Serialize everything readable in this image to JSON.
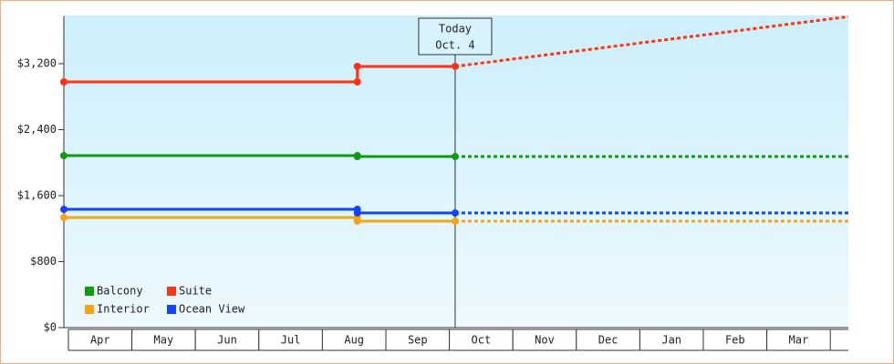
{
  "chart_data": {
    "type": "line",
    "categories": [
      "Apr",
      "May",
      "Jun",
      "Jul",
      "Aug",
      "Sep",
      "Oct",
      "Nov",
      "Dec",
      "Jan",
      "Feb",
      "Mar"
    ],
    "x": [
      -0.07,
      4.55,
      4.55,
      6.09
    ],
    "forecast_x": [
      6.09,
      12.28
    ],
    "xlim": [
      -0.07,
      12.28
    ],
    "ylim": [
      0,
      3780
    ],
    "yticks": [
      {
        "value": 0,
        "label": "$0"
      },
      {
        "value": 800,
        "label": "$800"
      },
      {
        "value": 1600,
        "label": "$1,600"
      },
      {
        "value": 2400,
        "label": "$2,400"
      },
      {
        "value": 3200,
        "label": "$3,200"
      }
    ],
    "today": {
      "x": 6.09,
      "title": "Today",
      "date": "Oct. 4"
    },
    "series": [
      {
        "name": "Balcony",
        "color": "#119911",
        "values": [
          2085,
          2085,
          2074,
          2074
        ],
        "forecast": [
          2074,
          2074
        ]
      },
      {
        "name": "Suite",
        "color": "#ff3311",
        "values": [
          2979,
          2979,
          3167,
          3167
        ],
        "forecast": [
          3167,
          3770
        ]
      },
      {
        "name": "Interior",
        "color": "#f5a511",
        "values": [
          1335,
          1335,
          1291,
          1291
        ],
        "forecast": [
          1291,
          1291
        ]
      },
      {
        "name": "Ocean View",
        "color": "#1144ff",
        "values": [
          1434,
          1434,
          1390,
          1390
        ],
        "forecast": [
          1390,
          1390
        ]
      }
    ]
  }
}
